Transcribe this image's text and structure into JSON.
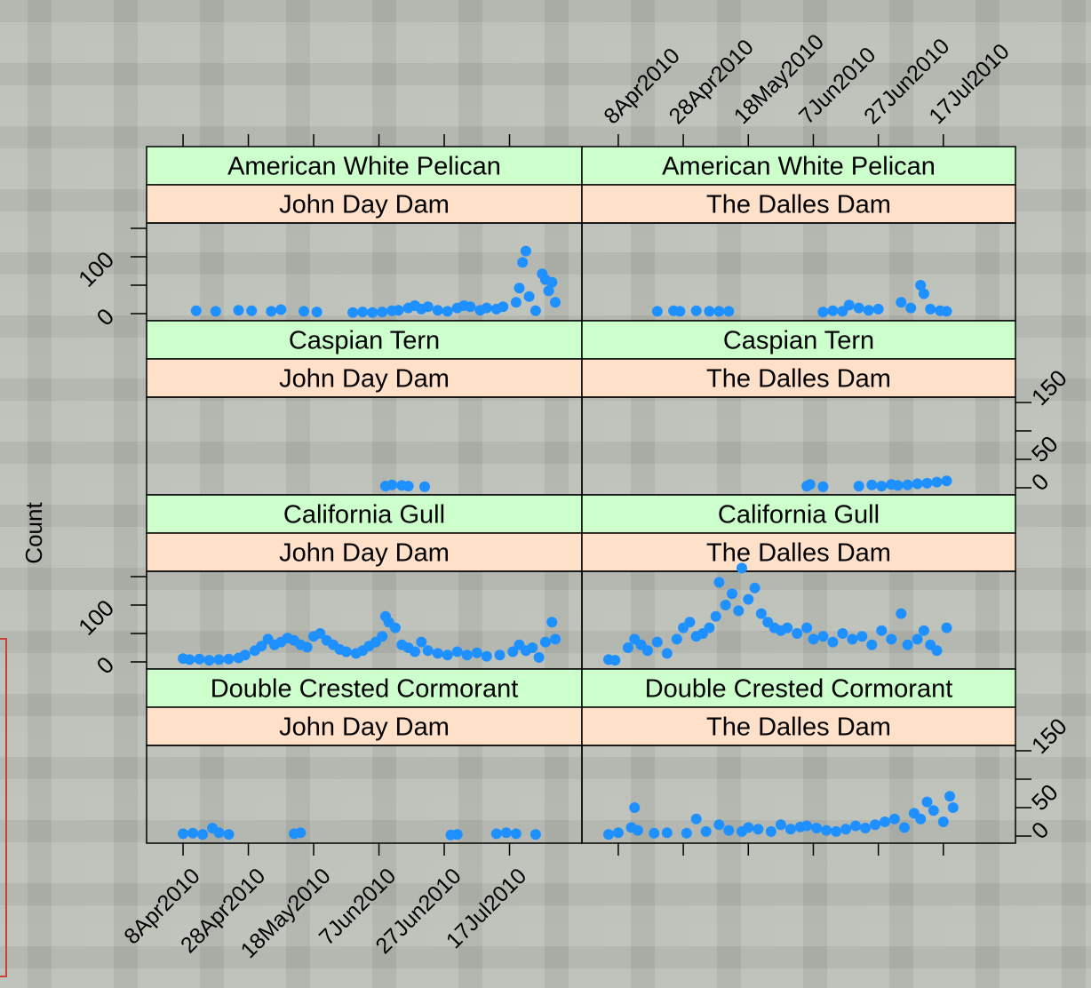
{
  "chart_data": {
    "type": "scatter",
    "ylabel": "Count",
    "xlabel": "",
    "x_ticks": [
      "8Apr2010",
      "28Apr2010",
      "18May2010",
      "7Jun2010",
      "27Jun2010",
      "17Jul2010"
    ],
    "x_range": [
      "2010-03-30",
      "2010-08-06"
    ],
    "y_ticks_left": [
      "0",
      "100"
    ],
    "y_ticks_right": [
      "0",
      "50",
      "150"
    ],
    "y_range": [
      0,
      150
    ],
    "point_color": "#1e90ff",
    "strip_species_color": "#ccffcc",
    "strip_dam_color": "#ffe0c8",
    "panels": [
      {
        "species": "American White Pelican",
        "dam": "John Day Dam",
        "points": [
          [
            "2010-04-12",
            5
          ],
          [
            "2010-04-18",
            4
          ],
          [
            "2010-04-25",
            6
          ],
          [
            "2010-04-29",
            5
          ],
          [
            "2010-05-05",
            4
          ],
          [
            "2010-05-08",
            7
          ],
          [
            "2010-05-15",
            4
          ],
          [
            "2010-05-19",
            3
          ],
          [
            "2010-05-30",
            2
          ],
          [
            "2010-06-02",
            3
          ],
          [
            "2010-06-05",
            2
          ],
          [
            "2010-06-08",
            3
          ],
          [
            "2010-06-11",
            5
          ],
          [
            "2010-06-13",
            6
          ],
          [
            "2010-06-16",
            10
          ],
          [
            "2010-06-18",
            14
          ],
          [
            "2010-06-20",
            8
          ],
          [
            "2010-06-22",
            12
          ],
          [
            "2010-06-25",
            6
          ],
          [
            "2010-06-28",
            4
          ],
          [
            "2010-07-01",
            10
          ],
          [
            "2010-07-03",
            14
          ],
          [
            "2010-07-05",
            12
          ],
          [
            "2010-07-08",
            6
          ],
          [
            "2010-07-10",
            10
          ],
          [
            "2010-07-13",
            8
          ],
          [
            "2010-07-15",
            12
          ],
          [
            "2010-07-19",
            20
          ],
          [
            "2010-07-20",
            45
          ],
          [
            "2010-07-21",
            90
          ],
          [
            "2010-07-22",
            110
          ],
          [
            "2010-07-23",
            30
          ],
          [
            "2010-07-25",
            5
          ],
          [
            "2010-07-27",
            70
          ],
          [
            "2010-07-28",
            60
          ],
          [
            "2010-07-29",
            40
          ],
          [
            "2010-07-30",
            55
          ],
          [
            "2010-07-31",
            20
          ]
        ]
      },
      {
        "species": "American White Pelican",
        "dam": "The Dalles Dam",
        "points": [
          [
            "2010-04-20",
            4
          ],
          [
            "2010-04-25",
            5
          ],
          [
            "2010-04-27",
            4
          ],
          [
            "2010-05-02",
            5
          ],
          [
            "2010-05-06",
            4
          ],
          [
            "2010-05-09",
            4
          ],
          [
            "2010-05-12",
            4
          ],
          [
            "2010-06-10",
            3
          ],
          [
            "2010-06-13",
            5
          ],
          [
            "2010-06-16",
            4
          ],
          [
            "2010-06-18",
            15
          ],
          [
            "2010-06-21",
            10
          ],
          [
            "2010-06-24",
            6
          ],
          [
            "2010-06-27",
            8
          ],
          [
            "2010-07-04",
            20
          ],
          [
            "2010-07-07",
            10
          ],
          [
            "2010-07-10",
            50
          ],
          [
            "2010-07-11",
            35
          ],
          [
            "2010-07-13",
            8
          ],
          [
            "2010-07-16",
            5
          ],
          [
            "2010-07-18",
            4
          ]
        ]
      },
      {
        "species": "Caspian Tern",
        "dam": "John Day Dam",
        "points": [
          [
            "2010-06-09",
            3
          ],
          [
            "2010-06-11",
            5
          ],
          [
            "2010-06-14",
            4
          ],
          [
            "2010-06-16",
            3
          ],
          [
            "2010-06-21",
            2
          ]
        ]
      },
      {
        "species": "Caspian Tern",
        "dam": "The Dalles Dam",
        "points": [
          [
            "2010-06-05",
            3
          ],
          [
            "2010-06-06",
            6
          ],
          [
            "2010-06-10",
            2
          ],
          [
            "2010-06-21",
            3
          ],
          [
            "2010-06-25",
            5
          ],
          [
            "2010-06-28",
            3
          ],
          [
            "2010-07-01",
            6
          ],
          [
            "2010-07-03",
            4
          ],
          [
            "2010-07-06",
            5
          ],
          [
            "2010-07-09",
            7
          ],
          [
            "2010-07-12",
            8
          ],
          [
            "2010-07-15",
            10
          ],
          [
            "2010-07-18",
            12
          ]
        ]
      },
      {
        "species": "California Gull",
        "dam": "John Day Dam",
        "points": [
          [
            "2010-04-08",
            6
          ],
          [
            "2010-04-10",
            4
          ],
          [
            "2010-04-13",
            5
          ],
          [
            "2010-04-16",
            3
          ],
          [
            "2010-04-19",
            4
          ],
          [
            "2010-04-22",
            5
          ],
          [
            "2010-04-25",
            7
          ],
          [
            "2010-04-27",
            12
          ],
          [
            "2010-04-30",
            20
          ],
          [
            "2010-05-02",
            28
          ],
          [
            "2010-05-04",
            40
          ],
          [
            "2010-05-06",
            30
          ],
          [
            "2010-05-08",
            35
          ],
          [
            "2010-05-10",
            42
          ],
          [
            "2010-05-12",
            38
          ],
          [
            "2010-05-14",
            30
          ],
          [
            "2010-05-16",
            26
          ],
          [
            "2010-05-18",
            45
          ],
          [
            "2010-05-20",
            50
          ],
          [
            "2010-05-22",
            38
          ],
          [
            "2010-05-24",
            30
          ],
          [
            "2010-05-26",
            22
          ],
          [
            "2010-05-28",
            18
          ],
          [
            "2010-05-31",
            15
          ],
          [
            "2010-06-02",
            20
          ],
          [
            "2010-06-04",
            28
          ],
          [
            "2010-06-06",
            35
          ],
          [
            "2010-06-08",
            45
          ],
          [
            "2010-06-09",
            80
          ],
          [
            "2010-06-10",
            70
          ],
          [
            "2010-06-12",
            60
          ],
          [
            "2010-06-14",
            30
          ],
          [
            "2010-06-16",
            25
          ],
          [
            "2010-06-18",
            18
          ],
          [
            "2010-06-20",
            35
          ],
          [
            "2010-06-22",
            20
          ],
          [
            "2010-06-25",
            15
          ],
          [
            "2010-06-28",
            12
          ],
          [
            "2010-07-01",
            18
          ],
          [
            "2010-07-04",
            12
          ],
          [
            "2010-07-07",
            16
          ],
          [
            "2010-07-10",
            10
          ],
          [
            "2010-07-14",
            12
          ],
          [
            "2010-07-18",
            18
          ],
          [
            "2010-07-20",
            30
          ],
          [
            "2010-07-22",
            20
          ],
          [
            "2010-07-24",
            25
          ],
          [
            "2010-07-26",
            8
          ],
          [
            "2010-07-28",
            35
          ],
          [
            "2010-07-30",
            70
          ],
          [
            "2010-07-31",
            40
          ]
        ]
      },
      {
        "species": "California Gull",
        "dam": "The Dalles Dam",
        "points": [
          [
            "2010-04-05",
            4
          ],
          [
            "2010-04-07",
            3
          ],
          [
            "2010-04-11",
            25
          ],
          [
            "2010-04-13",
            40
          ],
          [
            "2010-04-15",
            30
          ],
          [
            "2010-04-17",
            20
          ],
          [
            "2010-04-20",
            35
          ],
          [
            "2010-04-23",
            15
          ],
          [
            "2010-04-26",
            40
          ],
          [
            "2010-04-28",
            60
          ],
          [
            "2010-04-30",
            70
          ],
          [
            "2010-05-02",
            45
          ],
          [
            "2010-05-04",
            50
          ],
          [
            "2010-05-06",
            60
          ],
          [
            "2010-05-08",
            80
          ],
          [
            "2010-05-09",
            140
          ],
          [
            "2010-05-11",
            100
          ],
          [
            "2010-05-13",
            120
          ],
          [
            "2010-05-15",
            90
          ],
          [
            "2010-05-16",
            165
          ],
          [
            "2010-05-18",
            110
          ],
          [
            "2010-05-20",
            130
          ],
          [
            "2010-05-22",
            85
          ],
          [
            "2010-05-24",
            70
          ],
          [
            "2010-05-26",
            60
          ],
          [
            "2010-05-28",
            55
          ],
          [
            "2010-05-30",
            60
          ],
          [
            "2010-06-02",
            50
          ],
          [
            "2010-06-05",
            60
          ],
          [
            "2010-06-07",
            40
          ],
          [
            "2010-06-10",
            45
          ],
          [
            "2010-06-13",
            35
          ],
          [
            "2010-06-16",
            50
          ],
          [
            "2010-06-19",
            40
          ],
          [
            "2010-06-22",
            45
          ],
          [
            "2010-06-25",
            30
          ],
          [
            "2010-06-28",
            55
          ],
          [
            "2010-07-01",
            40
          ],
          [
            "2010-07-04",
            85
          ],
          [
            "2010-07-06",
            30
          ],
          [
            "2010-07-09",
            40
          ],
          [
            "2010-07-11",
            55
          ],
          [
            "2010-07-13",
            30
          ],
          [
            "2010-07-15",
            20
          ],
          [
            "2010-07-18",
            60
          ]
        ]
      },
      {
        "species": "Double Crested Cormorant",
        "dam": "John Day Dam",
        "points": [
          [
            "2010-04-08",
            4
          ],
          [
            "2010-04-11",
            5
          ],
          [
            "2010-04-14",
            3
          ],
          [
            "2010-04-17",
            14
          ],
          [
            "2010-04-19",
            6
          ],
          [
            "2010-04-22",
            3
          ],
          [
            "2010-05-12",
            4
          ],
          [
            "2010-05-14",
            6
          ],
          [
            "2010-06-29",
            2
          ],
          [
            "2010-07-01",
            3
          ],
          [
            "2010-07-13",
            4
          ],
          [
            "2010-07-16",
            6
          ],
          [
            "2010-07-19",
            4
          ],
          [
            "2010-07-25",
            3
          ]
        ]
      },
      {
        "species": "Double Crested Cormorant",
        "dam": "The Dalles Dam",
        "points": [
          [
            "2010-04-05",
            3
          ],
          [
            "2010-04-08",
            6
          ],
          [
            "2010-04-12",
            15
          ],
          [
            "2010-04-13",
            50
          ],
          [
            "2010-04-14",
            10
          ],
          [
            "2010-04-19",
            5
          ],
          [
            "2010-04-23",
            6
          ],
          [
            "2010-04-29",
            5
          ],
          [
            "2010-05-02",
            30
          ],
          [
            "2010-05-05",
            8
          ],
          [
            "2010-05-09",
            20
          ],
          [
            "2010-05-12",
            10
          ],
          [
            "2010-05-16",
            8
          ],
          [
            "2010-05-18",
            15
          ],
          [
            "2010-05-21",
            12
          ],
          [
            "2010-05-25",
            8
          ],
          [
            "2010-05-28",
            20
          ],
          [
            "2010-05-31",
            12
          ],
          [
            "2010-06-03",
            16
          ],
          [
            "2010-06-05",
            18
          ],
          [
            "2010-06-08",
            14
          ],
          [
            "2010-06-11",
            10
          ],
          [
            "2010-06-14",
            8
          ],
          [
            "2010-06-17",
            12
          ],
          [
            "2010-06-20",
            18
          ],
          [
            "2010-06-23",
            14
          ],
          [
            "2010-06-26",
            20
          ],
          [
            "2010-06-29",
            25
          ],
          [
            "2010-07-02",
            30
          ],
          [
            "2010-07-05",
            15
          ],
          [
            "2010-07-08",
            40
          ],
          [
            "2010-07-10",
            30
          ],
          [
            "2010-07-12",
            60
          ],
          [
            "2010-07-14",
            45
          ],
          [
            "2010-07-17",
            25
          ],
          [
            "2010-07-19",
            70
          ],
          [
            "2010-07-20",
            50
          ]
        ]
      }
    ]
  }
}
